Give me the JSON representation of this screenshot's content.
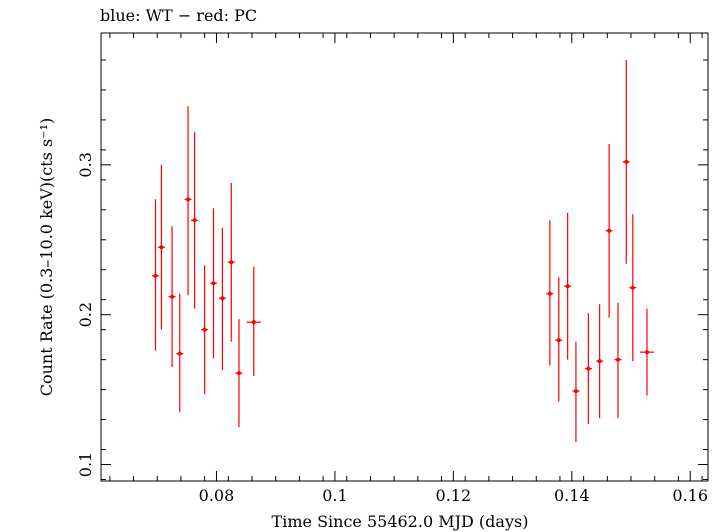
{
  "chart_data": {
    "type": "scatter",
    "title": "blue: WT − red: PC",
    "xlabel": "Time Since 55462.0 MJD (days)",
    "ylabel": "Count Rate (0.3–10.0 keV)(cts s⁻¹)",
    "xlim": [
      0.0605,
      0.163
    ],
    "ylim": [
      0.089,
      0.388
    ],
    "x_ticks": [
      0.08,
      0.1,
      0.12,
      0.14,
      0.16
    ],
    "x_tick_labels": [
      "0.08",
      "0.1",
      "0.12",
      "0.14",
      "0.16"
    ],
    "y_ticks": [
      0.1,
      0.2,
      0.3
    ],
    "y_tick_labels": [
      "0.1",
      "0.2",
      "0.3"
    ],
    "grid": false,
    "legend": "none",
    "series": [
      {
        "color": "#ff0000",
        "points": [
          {
            "x": 0.0697,
            "xerr": 0.0006,
            "y": 0.226,
            "ylo": 0.176,
            "yhi": 0.277
          },
          {
            "x": 0.0707,
            "xerr": 0.0006,
            "y": 0.245,
            "ylo": 0.19,
            "yhi": 0.3
          },
          {
            "x": 0.0725,
            "xerr": 0.0006,
            "y": 0.212,
            "ylo": 0.165,
            "yhi": 0.259
          },
          {
            "x": 0.0738,
            "xerr": 0.0006,
            "y": 0.174,
            "ylo": 0.135,
            "yhi": 0.214
          },
          {
            "x": 0.0752,
            "xerr": 0.0006,
            "y": 0.277,
            "ylo": 0.213,
            "yhi": 0.339
          },
          {
            "x": 0.0763,
            "xerr": 0.0006,
            "y": 0.263,
            "ylo": 0.204,
            "yhi": 0.322
          },
          {
            "x": 0.078,
            "xerr": 0.0006,
            "y": 0.19,
            "ylo": 0.147,
            "yhi": 0.233
          },
          {
            "x": 0.0795,
            "xerr": 0.0006,
            "y": 0.221,
            "ylo": 0.171,
            "yhi": 0.271
          },
          {
            "x": 0.081,
            "xerr": 0.0006,
            "y": 0.211,
            "ylo": 0.163,
            "yhi": 0.258
          },
          {
            "x": 0.0825,
            "xerr": 0.0006,
            "y": 0.235,
            "ylo": 0.182,
            "yhi": 0.288
          },
          {
            "x": 0.0838,
            "xerr": 0.0006,
            "y": 0.161,
            "ylo": 0.125,
            "yhi": 0.197
          },
          {
            "x": 0.0863,
            "xerr": 0.0012,
            "y": 0.195,
            "ylo": 0.159,
            "yhi": 0.232
          },
          {
            "x": 0.1363,
            "xerr": 0.0006,
            "y": 0.214,
            "ylo": 0.166,
            "yhi": 0.263
          },
          {
            "x": 0.1378,
            "xerr": 0.0006,
            "y": 0.183,
            "ylo": 0.142,
            "yhi": 0.225
          },
          {
            "x": 0.1393,
            "xerr": 0.0006,
            "y": 0.219,
            "ylo": 0.17,
            "yhi": 0.268
          },
          {
            "x": 0.1407,
            "xerr": 0.0006,
            "y": 0.149,
            "ylo": 0.115,
            "yhi": 0.182
          },
          {
            "x": 0.1428,
            "xerr": 0.0006,
            "y": 0.164,
            "ylo": 0.127,
            "yhi": 0.201
          },
          {
            "x": 0.1447,
            "xerr": 0.0006,
            "y": 0.169,
            "ylo": 0.131,
            "yhi": 0.207
          },
          {
            "x": 0.1463,
            "xerr": 0.0006,
            "y": 0.256,
            "ylo": 0.198,
            "yhi": 0.314
          },
          {
            "x": 0.1478,
            "xerr": 0.0006,
            "y": 0.17,
            "ylo": 0.131,
            "yhi": 0.208
          },
          {
            "x": 0.1492,
            "xerr": 0.0006,
            "y": 0.302,
            "ylo": 0.234,
            "yhi": 0.37
          },
          {
            "x": 0.1503,
            "xerr": 0.0006,
            "y": 0.218,
            "ylo": 0.169,
            "yhi": 0.267
          },
          {
            "x": 0.1527,
            "xerr": 0.0012,
            "y": 0.175,
            "ylo": 0.146,
            "yhi": 0.204
          }
        ]
      }
    ]
  }
}
